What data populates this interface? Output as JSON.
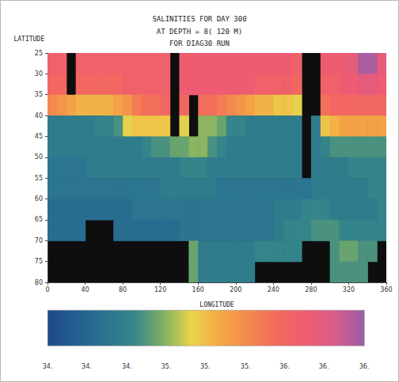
{
  "chart_data": {
    "type": "heatmap",
    "title": "SALINITIES FOR DAY 300",
    "subtitle": [
      "AT DEPTH = 8( 120 M)",
      "FOR DIAG30 RUN"
    ],
    "x_label": "LONGITUDE",
    "y_label": "LATITUDE",
    "x": [
      5,
      15,
      25,
      35,
      45,
      55,
      65,
      75,
      85,
      95,
      105,
      115,
      125,
      135,
      145,
      155,
      165,
      175,
      185,
      195,
      205,
      215,
      225,
      235,
      245,
      255,
      265,
      275,
      285,
      295,
      305,
      315,
      325,
      335,
      345,
      355
    ],
    "y": [
      27.5,
      32.5,
      37.5,
      42.5,
      47.5,
      52.5,
      57.5,
      62.5,
      67.5,
      72.5,
      77.5
    ],
    "values": [
      [
        36.1,
        36.1,
        null,
        36.1,
        36.1,
        36.1,
        36.1,
        36.1,
        36.1,
        36.1,
        36.1,
        36.1,
        36.1,
        null,
        36.2,
        36.2,
        36.2,
        36.2,
        36.2,
        36.2,
        36.2,
        36.2,
        36.2,
        36.2,
        36.2,
        36.2,
        36.1,
        null,
        null,
        36.2,
        36.2,
        36.2,
        36.3,
        36.6,
        36.6,
        36.3
      ],
      [
        36.0,
        36.0,
        null,
        36.0,
        36.0,
        36.0,
        36.0,
        36.0,
        36.1,
        36.1,
        36.1,
        36.1,
        36.1,
        null,
        36.2,
        36.2,
        36.2,
        36.2,
        36.2,
        36.2,
        36.2,
        36.2,
        36.1,
        36.1,
        36.1,
        36.1,
        36.0,
        null,
        null,
        36.1,
        36.1,
        36.2,
        36.2,
        36.3,
        36.3,
        36.2
      ],
      [
        35.7,
        35.6,
        35.5,
        35.4,
        35.4,
        35.4,
        35.4,
        35.5,
        35.6,
        35.8,
        35.9,
        35.9,
        36.0,
        null,
        36.0,
        null,
        35.9,
        35.9,
        35.8,
        35.7,
        35.6,
        35.5,
        35.4,
        35.4,
        35.3,
        35.3,
        35.2,
        null,
        null,
        35.9,
        36.0,
        36.0,
        36.0,
        36.0,
        36.0,
        36.0
      ],
      [
        34.6,
        34.6,
        34.6,
        34.6,
        34.6,
        34.7,
        34.7,
        34.8,
        35.2,
        35.3,
        35.3,
        35.3,
        35.3,
        null,
        35.2,
        null,
        35.0,
        35.0,
        34.9,
        34.7,
        34.7,
        34.6,
        34.6,
        34.6,
        34.6,
        34.6,
        34.6,
        null,
        34.6,
        35.3,
        35.4,
        35.5,
        35.5,
        35.5,
        35.5,
        35.5
      ],
      [
        34.6,
        34.6,
        34.6,
        34.6,
        34.6,
        34.6,
        34.6,
        34.6,
        34.6,
        34.6,
        34.7,
        34.8,
        34.8,
        34.9,
        34.9,
        35.0,
        35.0,
        34.8,
        34.7,
        34.6,
        34.6,
        34.6,
        34.6,
        34.6,
        34.6,
        34.6,
        34.6,
        null,
        34.6,
        34.7,
        34.8,
        34.8,
        34.8,
        34.8,
        34.8,
        34.8
      ],
      [
        34.5,
        34.5,
        34.5,
        34.5,
        34.6,
        34.6,
        34.6,
        34.6,
        34.6,
        34.6,
        34.6,
        34.6,
        34.6,
        34.6,
        34.7,
        34.7,
        34.7,
        34.6,
        34.6,
        34.6,
        34.6,
        34.6,
        34.6,
        34.6,
        34.6,
        34.6,
        34.6,
        null,
        34.6,
        34.6,
        34.6,
        34.6,
        34.7,
        34.7,
        34.7,
        34.7
      ],
      [
        34.5,
        34.5,
        34.5,
        34.5,
        34.5,
        34.5,
        34.5,
        34.5,
        34.5,
        34.5,
        34.5,
        34.5,
        34.6,
        34.6,
        34.6,
        34.6,
        34.6,
        34.6,
        34.5,
        34.5,
        34.5,
        34.5,
        34.5,
        34.5,
        34.5,
        34.5,
        34.5,
        34.5,
        34.6,
        34.6,
        34.6,
        34.6,
        34.6,
        34.6,
        34.7,
        34.7
      ],
      [
        34.4,
        34.4,
        34.4,
        34.4,
        34.4,
        34.4,
        34.4,
        34.4,
        34.4,
        34.5,
        34.5,
        34.5,
        34.5,
        34.5,
        34.5,
        34.5,
        34.5,
        34.5,
        34.5,
        34.5,
        34.5,
        34.5,
        34.5,
        34.5,
        34.6,
        34.6,
        34.6,
        34.7,
        34.7,
        34.7,
        34.6,
        34.6,
        34.6,
        34.6,
        34.6,
        34.7
      ],
      [
        34.4,
        34.4,
        34.4,
        34.4,
        null,
        null,
        null,
        34.4,
        34.4,
        34.4,
        34.4,
        34.4,
        34.4,
        34.4,
        34.5,
        34.5,
        34.5,
        34.5,
        34.5,
        34.5,
        34.5,
        34.5,
        34.5,
        34.5,
        34.6,
        34.7,
        34.7,
        34.7,
        34.8,
        34.8,
        34.8,
        34.7,
        34.7,
        34.7,
        34.7,
        34.7
      ],
      [
        null,
        null,
        null,
        null,
        null,
        null,
        null,
        null,
        null,
        null,
        null,
        null,
        null,
        null,
        null,
        34.9,
        34.6,
        34.6,
        34.6,
        34.6,
        34.6,
        34.6,
        34.7,
        34.7,
        34.7,
        34.7,
        34.7,
        null,
        null,
        null,
        34.8,
        34.9,
        34.9,
        34.8,
        34.8,
        null
      ],
      [
        null,
        null,
        null,
        null,
        null,
        null,
        null,
        null,
        null,
        null,
        null,
        null,
        null,
        null,
        null,
        34.9,
        34.6,
        34.6,
        34.6,
        34.6,
        34.6,
        34.6,
        null,
        null,
        null,
        null,
        null,
        null,
        null,
        null,
        34.8,
        34.8,
        34.8,
        34.8,
        null,
        null
      ]
    ],
    "xlim": [
      0,
      360
    ],
    "xticks": [
      0,
      40,
      80,
      120,
      160,
      200,
      240,
      280,
      320,
      360
    ],
    "ylim": [
      25,
      80
    ],
    "yticks": [
      25,
      30,
      35,
      40,
      45,
      50,
      55,
      60,
      65,
      70,
      75,
      80
    ],
    "grid": false,
    "colorbar": {
      "range": [
        34.0,
        36.67
      ],
      "ticks": [
        {
          "value": 34.0,
          "label": "34."
        },
        {
          "value": 34.33,
          "label": "34."
        },
        {
          "value": 34.67,
          "label": "34."
        },
        {
          "value": 35.0,
          "label": "35."
        },
        {
          "value": 35.33,
          "label": "35."
        },
        {
          "value": 35.67,
          "label": "35."
        },
        {
          "value": 36.0,
          "label": "36."
        },
        {
          "value": 36.33,
          "label": "36."
        },
        {
          "value": 36.67,
          "label": "36."
        }
      ]
    }
  }
}
